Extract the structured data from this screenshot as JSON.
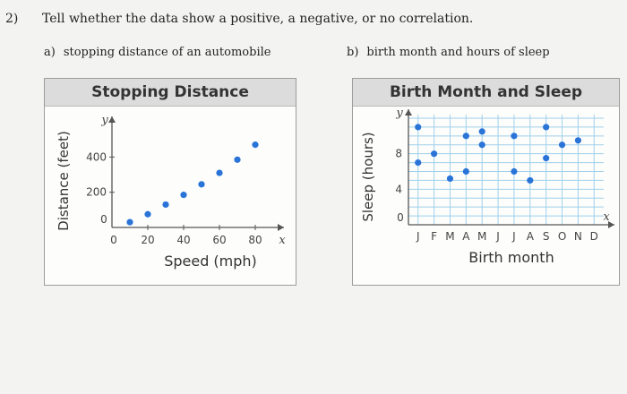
{
  "question": {
    "number": "2)",
    "text": "Tell whether the data show a positive, a negative, or no correlation."
  },
  "parts": [
    {
      "letter": "a)",
      "text": "stopping distance of an automobile"
    },
    {
      "letter": "b)",
      "text": "birth month and hours of sleep"
    }
  ],
  "colors": {
    "point": "#2a74d8",
    "grid": "#9fd0ea",
    "axis": "#555555"
  },
  "chart_data": [
    {
      "type": "scatter",
      "title": "Stopping Distance",
      "xlabel": "Speed (mph)",
      "ylabel": "Distance (feet)",
      "x_var": "x",
      "y_var": "y",
      "x_ticks": [
        "0",
        "20",
        "40",
        "60",
        "80"
      ],
      "y_ticks": [
        "0",
        "200",
        "400"
      ],
      "y_origin_label": "0",
      "xlim": [
        0,
        90
      ],
      "ylim": [
        0,
        580
      ],
      "grid": false,
      "points": [
        {
          "x": 10,
          "y": 30
        },
        {
          "x": 20,
          "y": 75
        },
        {
          "x": 30,
          "y": 130
        },
        {
          "x": 40,
          "y": 185
        },
        {
          "x": 50,
          "y": 245
        },
        {
          "x": 60,
          "y": 310
        },
        {
          "x": 70,
          "y": 385
        },
        {
          "x": 80,
          "y": 470
        }
      ]
    },
    {
      "type": "scatter",
      "title": "Birth Month and Sleep",
      "xlabel": "Birth month",
      "ylabel": "Sleep (hours)",
      "x_var": "x",
      "y_var": "y",
      "x_ticks": [
        "J",
        "F",
        "M",
        "A",
        "M",
        "J",
        "J",
        "A",
        "S",
        "O",
        "N",
        "D"
      ],
      "y_ticks": [
        "0",
        "4",
        "8"
      ],
      "y_origin_label": "0",
      "xlim": [
        0.4,
        12.6
      ],
      "ylim": [
        0,
        12
      ],
      "grid": true,
      "points": [
        {
          "x": 1,
          "y": 11
        },
        {
          "x": 1,
          "y": 7
        },
        {
          "x": 2,
          "y": 8
        },
        {
          "x": 3,
          "y": 5.2
        },
        {
          "x": 4,
          "y": 10
        },
        {
          "x": 4,
          "y": 6
        },
        {
          "x": 5,
          "y": 10.5
        },
        {
          "x": 5,
          "y": 9
        },
        {
          "x": 7,
          "y": 10
        },
        {
          "x": 7,
          "y": 6
        },
        {
          "x": 8,
          "y": 5
        },
        {
          "x": 9,
          "y": 11
        },
        {
          "x": 9,
          "y": 7.5
        },
        {
          "x": 10,
          "y": 9
        },
        {
          "x": 11,
          "y": 9.5
        }
      ]
    }
  ]
}
